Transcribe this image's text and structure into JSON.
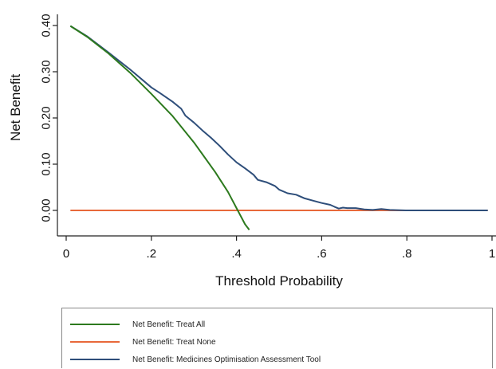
{
  "chart_data": {
    "type": "line",
    "xlabel": "Threshold Probability",
    "ylabel": "Net Benefit",
    "xlim": [
      0,
      1
    ],
    "ylim": [
      -0.055,
      0.42
    ],
    "x_ticks": [
      0,
      0.2,
      0.4,
      0.6,
      0.8,
      1
    ],
    "x_tick_labels": [
      "0",
      ".2",
      ".4",
      ".6",
      ".8",
      "1"
    ],
    "y_ticks": [
      0,
      0.1,
      0.2,
      0.3,
      0.4
    ],
    "y_tick_labels": [
      "0.00",
      "0.10",
      "0.20",
      "0.30",
      "0.40"
    ],
    "grid": false,
    "legend_position": "bottom",
    "series": [
      {
        "name": "Net Benefit: Treat All",
        "color": "#2d7a1e",
        "points": [
          [
            0.01,
            0.399
          ],
          [
            0.05,
            0.375
          ],
          [
            0.1,
            0.339
          ],
          [
            0.15,
            0.298
          ],
          [
            0.2,
            0.252
          ],
          [
            0.25,
            0.204
          ],
          [
            0.3,
            0.147
          ],
          [
            0.35,
            0.083
          ],
          [
            0.38,
            0.04
          ],
          [
            0.4,
            0.005
          ],
          [
            0.42,
            -0.03
          ],
          [
            0.43,
            -0.042
          ]
        ]
      },
      {
        "name": "Net Benefit: Treat None",
        "color": "#e8693a",
        "points": [
          [
            0.01,
            0.0
          ],
          [
            0.99,
            0.0
          ]
        ]
      },
      {
        "name": "Net Benefit: Medicines Optimisation Assessment Tool",
        "color": "#2e4e7a",
        "points": [
          [
            0.01,
            0.399
          ],
          [
            0.05,
            0.376
          ],
          [
            0.1,
            0.341
          ],
          [
            0.15,
            0.305
          ],
          [
            0.2,
            0.266
          ],
          [
            0.22,
            0.254
          ],
          [
            0.25,
            0.235
          ],
          [
            0.27,
            0.22
          ],
          [
            0.28,
            0.205
          ],
          [
            0.3,
            0.19
          ],
          [
            0.32,
            0.173
          ],
          [
            0.34,
            0.157
          ],
          [
            0.36,
            0.14
          ],
          [
            0.38,
            0.121
          ],
          [
            0.4,
            0.104
          ],
          [
            0.42,
            0.091
          ],
          [
            0.44,
            0.077
          ],
          [
            0.45,
            0.066
          ],
          [
            0.47,
            0.061
          ],
          [
            0.49,
            0.053
          ],
          [
            0.5,
            0.045
          ],
          [
            0.52,
            0.037
          ],
          [
            0.54,
            0.034
          ],
          [
            0.56,
            0.026
          ],
          [
            0.58,
            0.021
          ],
          [
            0.6,
            0.016
          ],
          [
            0.62,
            0.012
          ],
          [
            0.63,
            0.008
          ],
          [
            0.64,
            0.004
          ],
          [
            0.65,
            0.006
          ],
          [
            0.66,
            0.005
          ],
          [
            0.68,
            0.005
          ],
          [
            0.7,
            0.002
          ],
          [
            0.72,
            0.001
          ],
          [
            0.74,
            0.003
          ],
          [
            0.76,
            0.001
          ],
          [
            0.8,
            0.0
          ],
          [
            0.86,
            0.0
          ],
          [
            0.9,
            0.0
          ],
          [
            0.99,
            0.0
          ]
        ]
      }
    ]
  }
}
